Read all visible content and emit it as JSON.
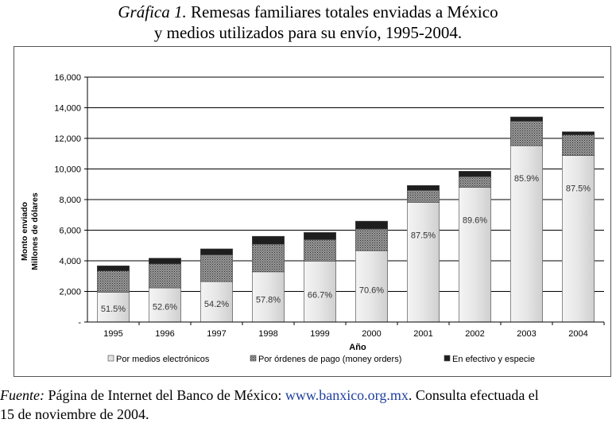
{
  "title": {
    "lead": "Gráfica 1.",
    "line1_rest": " Remesas familiares totales enviadas a México",
    "line2": "y medios utilizados para su envío, 1995-2004."
  },
  "source": {
    "label": "Fuente:",
    "text_before": " Página de Internet del Banco de México: ",
    "url": "www.banxico.org.mx",
    "text_after": ". Consulta efectuada el",
    "line2": "15 de noviembre de 2004."
  },
  "chart_data": {
    "type": "bar",
    "stacked": true,
    "categories": [
      "1995",
      "1996",
      "1997",
      "1998",
      "1999",
      "2000",
      "2001",
      "2002",
      "2003",
      "2004"
    ],
    "series": [
      {
        "name": "Por medios electrónicos",
        "values": [
          1940,
          2230,
          2640,
          3280,
          3980,
          4660,
          7820,
          8800,
          11520,
          10880
        ],
        "color": "#e2e2e2",
        "pattern": "solid"
      },
      {
        "name": "Por órdenes de pago (money orders)",
        "values": [
          1400,
          1570,
          1750,
          1800,
          1400,
          1420,
          780,
          700,
          1600,
          1350
        ],
        "color": "#8a8a8a",
        "pattern": "dots"
      },
      {
        "name": "En efectivo y especie",
        "values": [
          330,
          370,
          390,
          520,
          470,
          510,
          320,
          350,
          280,
          200
        ],
        "color": "#1e1e1e",
        "pattern": "solid"
      }
    ],
    "data_labels": [
      "51.5%",
      "52.6%",
      "54.2%",
      "57.8%",
      "66.7%",
      "70.6%",
      "87.5%",
      "89.6%",
      "85.9%",
      "87.5%"
    ],
    "y_ticks": [
      "-",
      "2,000",
      "4,000",
      "6,000",
      "8,000",
      "10,000",
      "12,000",
      "14,000",
      "16,000"
    ],
    "ylim": [
      0,
      16000
    ],
    "ylabel_line1": "Monto enviado",
    "ylabel_line2": "Millones de dólares",
    "xlabel": "Año",
    "grid": true,
    "legend_position": "bottom"
  }
}
